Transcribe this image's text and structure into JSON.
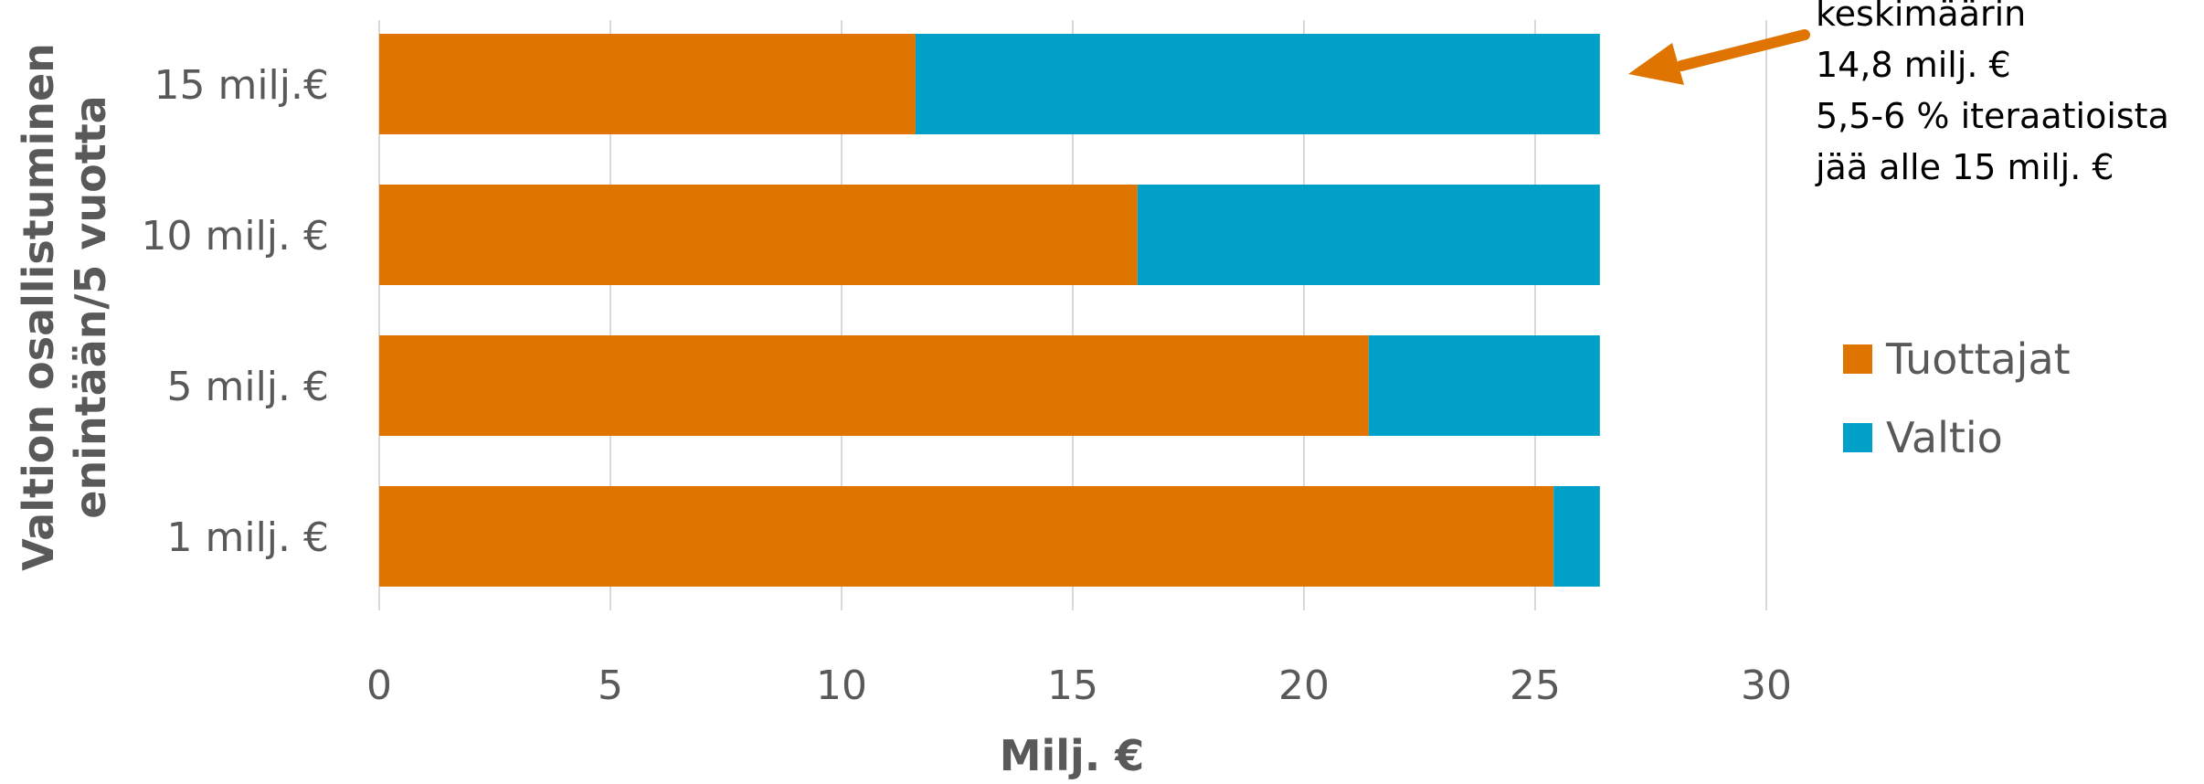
{
  "chart_data": {
    "type": "bar",
    "orientation": "horizontal",
    "stacked": true,
    "categories": [
      "15 milj.€",
      "10 milj. €",
      "5 milj. €",
      "1 milj. €"
    ],
    "series": [
      {
        "name": "Tuottajat",
        "color": "#E07400",
        "values": [
          11.6,
          16.4,
          21.4,
          25.4
        ]
      },
      {
        "name": "Valtio",
        "color": "#00A0C8",
        "values": [
          14.8,
          10.0,
          5.0,
          1.0
        ]
      }
    ],
    "xlabel": "Milj. €",
    "ylabel_lines": [
      "Valtion osallistuminen",
      "enintään/5 vuotta"
    ],
    "xlim": [
      0,
      30
    ],
    "xticks": [
      "0",
      "5",
      "10",
      "15",
      "20",
      "25",
      "30"
    ],
    "grid": true,
    "legend_position": "right",
    "annotation": {
      "lines": [
        "keskimäärin",
        "14,8 milj. €",
        "5,5-6 % iteraatioista",
        "jää alle 15 milj. €"
      ],
      "arrow_color": "#E07400"
    }
  }
}
